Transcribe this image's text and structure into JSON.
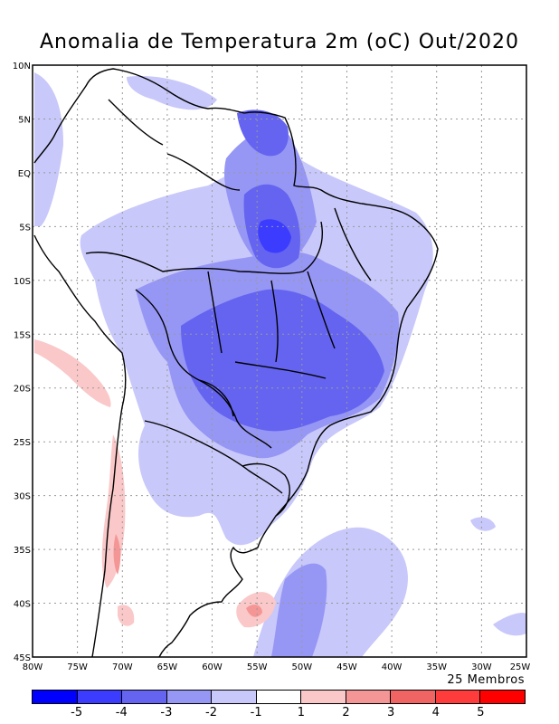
{
  "title": "Anomalia de Temperatura 2m (oC) Out/2020",
  "members_note": "25 Membros",
  "lat_labels": [
    "10N",
    "5N",
    "EQ",
    "5S",
    "10S",
    "15S",
    "20S",
    "25S",
    "30S",
    "35S",
    "40S",
    "45S"
  ],
  "lon_labels": [
    "80W",
    "75W",
    "70W",
    "65W",
    "60W",
    "55W",
    "50W",
    "45W",
    "40W",
    "35W",
    "30W",
    "25W"
  ],
  "colorbar": {
    "colors": [
      "#0000ff",
      "#3c3cff",
      "#6464f0",
      "#9696f5",
      "#c8c8fa",
      "#ffffff",
      "#fac8c8",
      "#f59696",
      "#f06464",
      "#ff3c3c",
      "#ff0000"
    ],
    "labels": [
      "-5",
      "-4",
      "-3",
      "-2",
      "-1",
      "1",
      "2",
      "3",
      "4",
      "5"
    ]
  }
}
